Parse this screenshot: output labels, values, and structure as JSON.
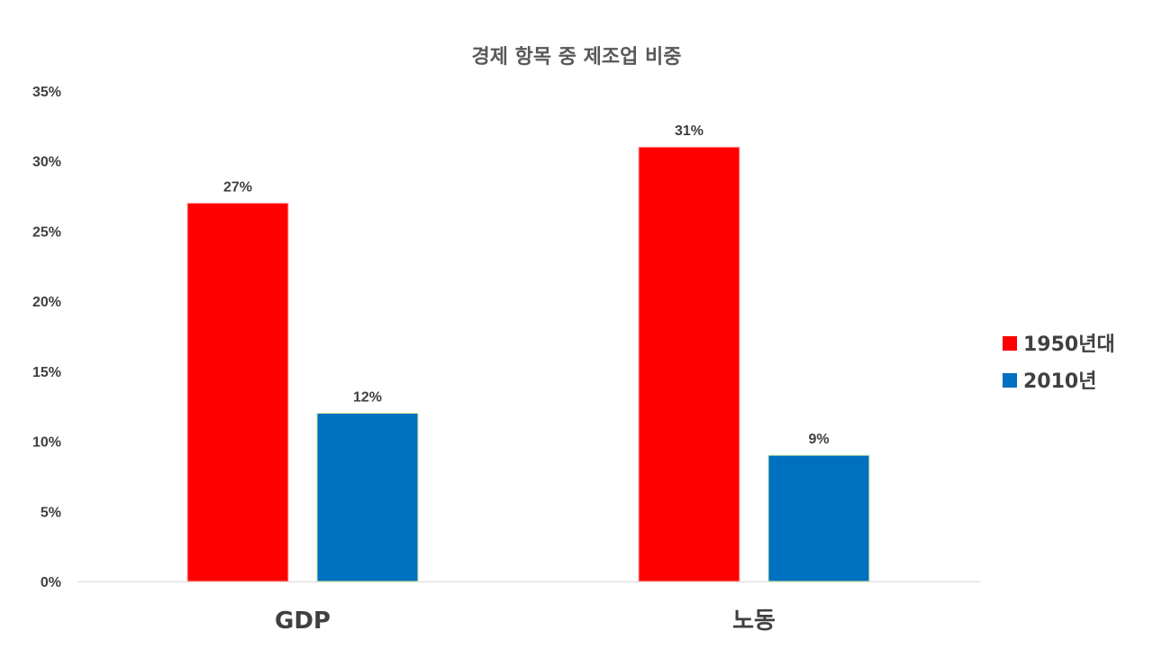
{
  "chart_data": {
    "type": "bar",
    "title": "경제 항목 중 제조업 비중",
    "categories": [
      "GDP",
      "노동"
    ],
    "series": [
      {
        "name": "1950년대",
        "values": [
          0.27,
          0.31
        ],
        "labels": [
          "27%",
          "31%"
        ],
        "color": "#FF0000"
      },
      {
        "name": "2010년",
        "values": [
          0.12,
          0.09
        ],
        "labels": [
          "12%",
          "9%"
        ],
        "color": "#0070C0"
      }
    ],
    "ylim": [
      0,
      0.35
    ],
    "yticks": [
      "0%",
      "5%",
      "10%",
      "15%",
      "20%",
      "25%",
      "30%",
      "35%"
    ],
    "grid": false,
    "legend": "right"
  }
}
